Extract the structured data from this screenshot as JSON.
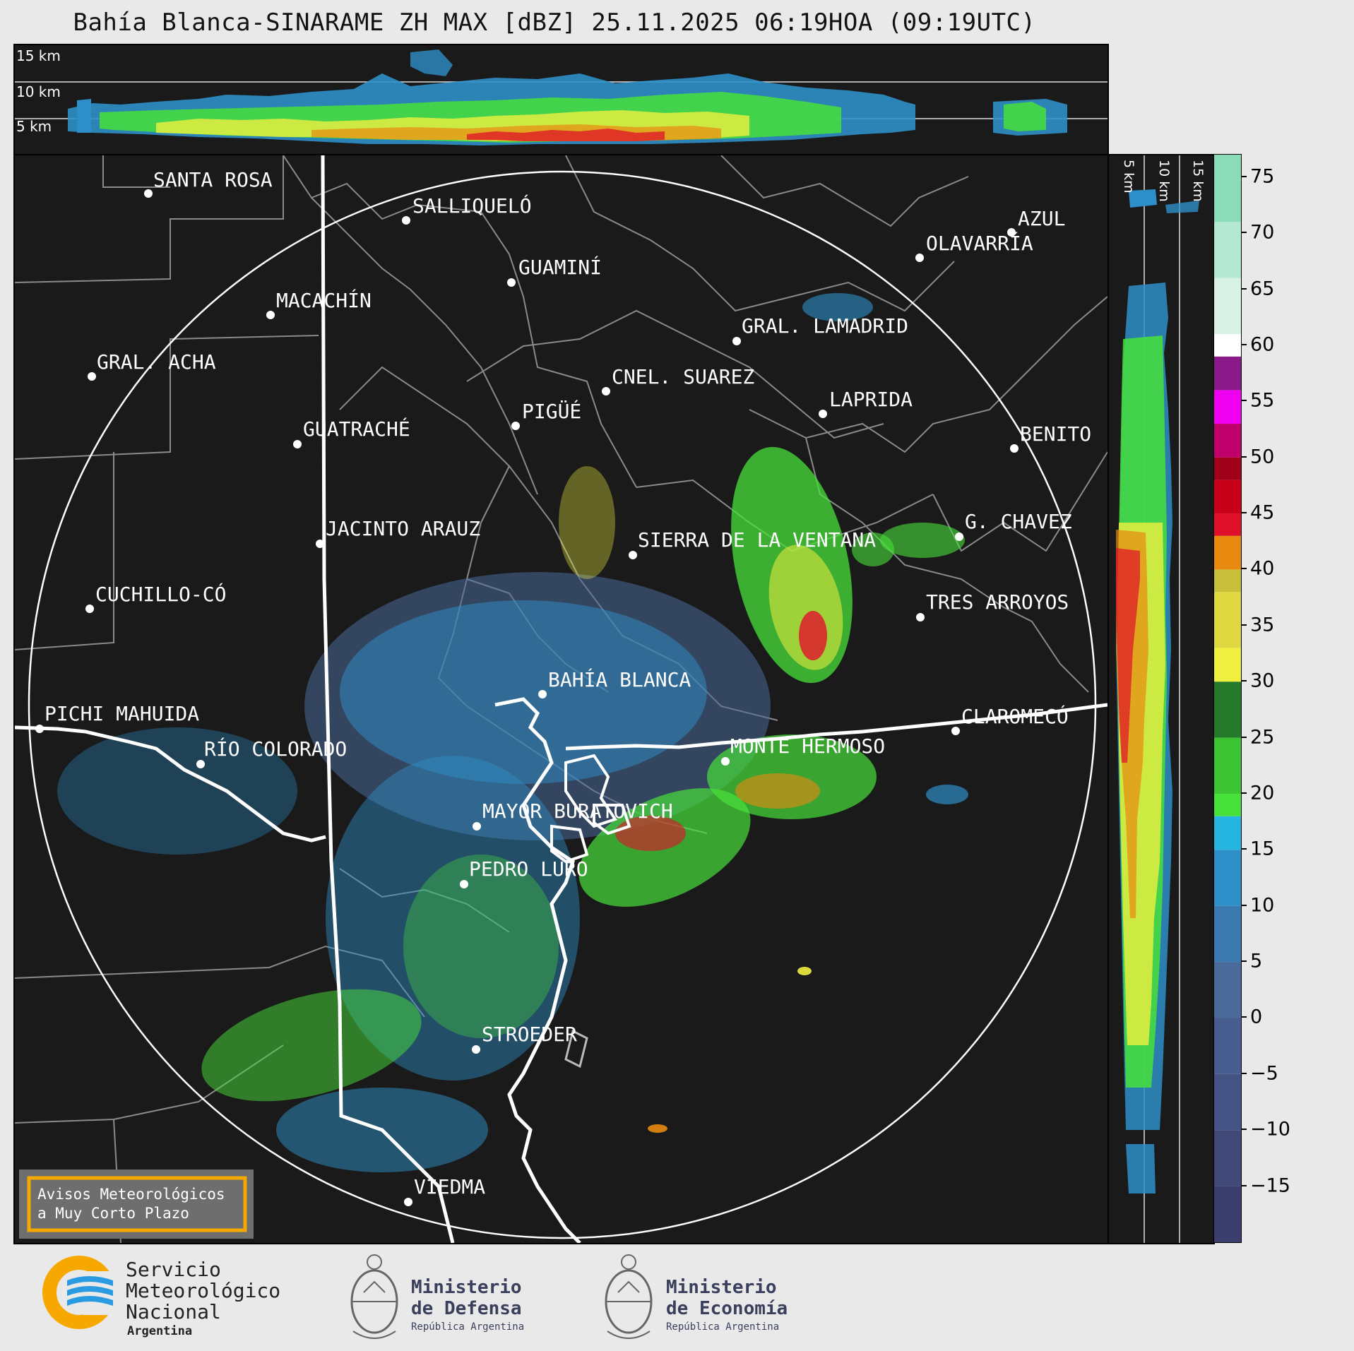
{
  "title": "Bahía Blanca-SINARAME ZH MAX [dBZ] 25.11.2025 06:19HOA (09:19UTC)",
  "top_panel": {
    "altitude_labels": [
      "15 km",
      "10 km",
      "5 km"
    ]
  },
  "side_panel": {
    "altitude_labels": [
      "5 km",
      "10 km",
      "15 km"
    ]
  },
  "colorbar": {
    "unit": "dBZ",
    "ticks": [
      "75",
      "70",
      "65",
      "60",
      "55",
      "50",
      "45",
      "40",
      "35",
      "30",
      "25",
      "20",
      "15",
      "10",
      "5",
      "0",
      "−5",
      "−10",
      "−15"
    ],
    "tick_values": [
      75,
      70,
      65,
      60,
      55,
      50,
      45,
      40,
      35,
      30,
      25,
      20,
      15,
      10,
      5,
      0,
      -5,
      -10,
      -15
    ],
    "range": [
      -20,
      77
    ],
    "colors": {
      "low": "#3b3f6e",
      "blue_gray": "#4a6a9a",
      "blue": "#2e8fc8",
      "cyan": "#26b4e0",
      "green_light": "#48e03a",
      "green_dark": "#247a2a",
      "yellow": "#f0f040",
      "olive": "#c8c03a",
      "orange": "#e88a10",
      "red": "#e0102a",
      "dark_red": "#a0001a",
      "magenta": "#f000f0",
      "purple": "#8a1a8a",
      "white": "#ffffff",
      "mint": "#8adcb8"
    }
  },
  "map": {
    "cities": [
      {
        "name": "SANTA ROSA"
      },
      {
        "name": "SALLIQUELÓ"
      },
      {
        "name": "AZUL"
      },
      {
        "name": "OLAVARRÍA"
      },
      {
        "name": "GUAMINÍ"
      },
      {
        "name": "MACACHÍN"
      },
      {
        "name": "GRAL. LAMADRID"
      },
      {
        "name": "GRAL. ACHA"
      },
      {
        "name": "CNEL. SUAREZ"
      },
      {
        "name": "LAPRIDA"
      },
      {
        "name": "PIGÜÉ"
      },
      {
        "name": "GUATRACHÉ"
      },
      {
        "name": "BENITO"
      },
      {
        "name": "G. CHAVEZ"
      },
      {
        "name": "JACINTO ARAUZ"
      },
      {
        "name": "SIERRA DE LA VENTANA"
      },
      {
        "name": "CUCHILLO-CÓ"
      },
      {
        "name": "TRES ARROYOS"
      },
      {
        "name": "BAHÍA BLANCA"
      },
      {
        "name": "PICHI MAHUIDA"
      },
      {
        "name": "CLAROMECÓ"
      },
      {
        "name": "RÍO COLORADO"
      },
      {
        "name": "MONTE HERMOSO"
      },
      {
        "name": "MAYOR BURATOVICH"
      },
      {
        "name": "PEDRO LURO"
      },
      {
        "name": "STROEDER"
      },
      {
        "name": "VIEDMA"
      }
    ],
    "warning_box": [
      "Avisos Meteorológicos",
      "a Muy Corto Plazo"
    ],
    "warning_border_color": "#f5a800"
  },
  "footer": {
    "smn": [
      "Servicio",
      "Meteorológico",
      "Nacional",
      "Argentina"
    ],
    "defensa": [
      "Ministerio",
      "de Defensa",
      "República Argentina"
    ],
    "economia": [
      "Ministerio",
      "de Economía",
      "República Argentina"
    ]
  }
}
